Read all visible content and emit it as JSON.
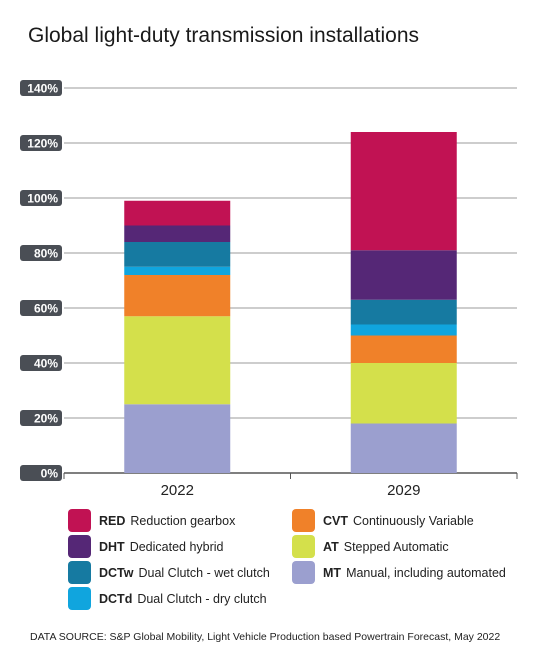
{
  "chart_data": {
    "type": "bar",
    "stacked": true,
    "title": "Global light-duty transmission installations",
    "categories": [
      "2022",
      "2029"
    ],
    "yticks": [
      "0%",
      "20%",
      "40%",
      "60%",
      "80%",
      "100%",
      "120%",
      "140%"
    ],
    "ylim": [
      0,
      140
    ],
    "grid": true,
    "series": [
      {
        "code": "MT",
        "name": "Manual, including automated",
        "color": "#9b9fcf",
        "values": [
          25,
          18
        ]
      },
      {
        "code": "AT",
        "name": "Stepped Automatic",
        "color": "#d4e04b",
        "values": [
          32,
          22
        ]
      },
      {
        "code": "CVT",
        "name": "Continuously Variable",
        "color": "#f08129",
        "values": [
          15,
          10
        ]
      },
      {
        "code": "DCTd",
        "name": "Dual Clutch - dry clutch",
        "color": "#10a5de",
        "values": [
          3,
          4
        ]
      },
      {
        "code": "DCTw",
        "name": "Dual Clutch - wet clutch",
        "color": "#167aa1",
        "values": [
          9,
          9
        ]
      },
      {
        "code": "DHT",
        "name": "Dedicated hybrid",
        "color": "#552776",
        "values": [
          6,
          18
        ]
      },
      {
        "code": "RED",
        "name": "Reduction gearbox",
        "color": "#c11253",
        "values": [
          9,
          43
        ]
      }
    ]
  },
  "source": "DATA SOURCE: S&P Global Mobility, Light Vehicle Production based Powertrain Forecast, May 2022"
}
